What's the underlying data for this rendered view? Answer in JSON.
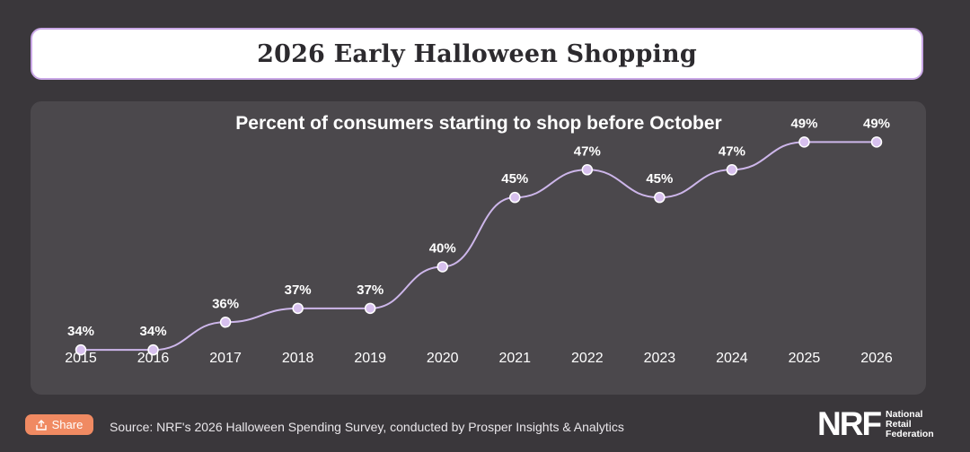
{
  "header": {
    "title": "2026 Early Halloween Shopping"
  },
  "chart_data": {
    "type": "line",
    "title": "Percent of consumers starting to shop before October",
    "x": [
      "2015",
      "2016",
      "2017",
      "2018",
      "2019",
      "2020",
      "2021",
      "2022",
      "2023",
      "2024",
      "2025",
      "2026"
    ],
    "series": [
      {
        "values": [
          34,
          34,
          36,
          37,
          37,
          40,
          45,
          47,
          45,
          47,
          49,
          49
        ]
      }
    ],
    "data_labels": [
      "34%",
      "34%",
      "36%",
      "37%",
      "37%",
      "40%",
      "45%",
      "47%",
      "45%",
      "47%",
      "49%",
      "49%"
    ],
    "ylim": [
      30,
      52
    ],
    "grid": false,
    "line_color": "#cdb6ea",
    "point_color": "#d7c0ee",
    "label_color": "#ffffff"
  },
  "footer": {
    "share_label": "Share",
    "share_icon": "share-icon",
    "source": "Source: NRF's 2026 Halloween Spending Survey, conducted by Prosper Insights & Analytics",
    "logo_mark": "NRF",
    "logo_line1": "National",
    "logo_line2": "Retail",
    "logo_line3": "Federation"
  },
  "colors": {
    "background": "#3a373b",
    "panel": "#4b484c",
    "title_border": "#c9a7e6",
    "share": "#f08a62"
  }
}
